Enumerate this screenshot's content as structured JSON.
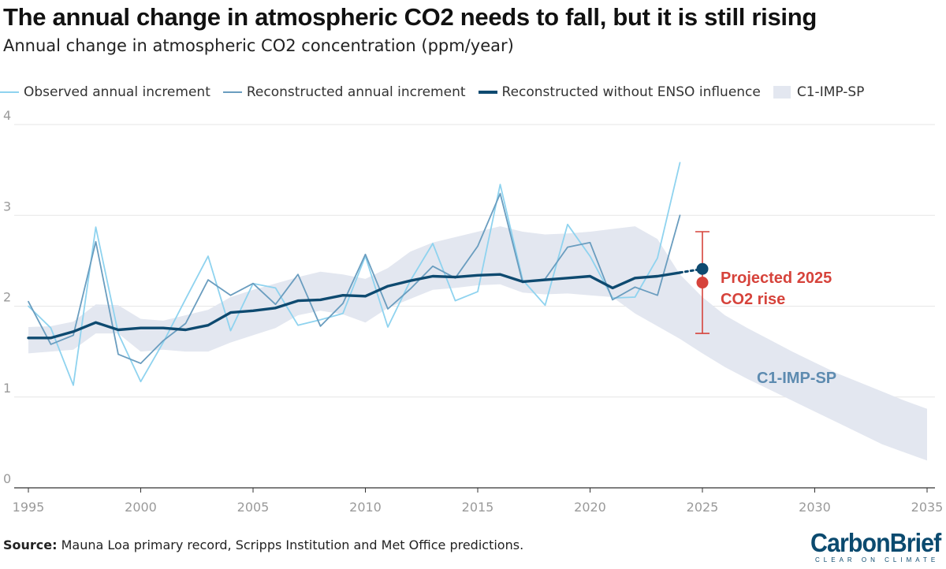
{
  "title": "The annual change in atmospheric CO2 needs to fall, but it is still rising",
  "subtitle": "Annual change in atmospheric CO2 concentration (ppm/year)",
  "legend": [
    {
      "label": "Observed annual increment",
      "kind": "line",
      "color": "#8fd3ef"
    },
    {
      "label": "Reconstructed annual increment",
      "kind": "line",
      "color": "#6a9dbf"
    },
    {
      "label": "Reconstructed without ENSO influence",
      "kind": "line",
      "color": "#0e4a70"
    },
    {
      "label": "C1-IMP-SP",
      "kind": "band",
      "color": "#e3e7f0"
    }
  ],
  "source": {
    "label": "Source:",
    "text": " Mauna Loa primary record, Scripps Institution and Met Office predictions."
  },
  "logo": {
    "main": "CarbonBrief",
    "tagline": "CLEAR ON CLIMATE"
  },
  "annotations": {
    "projection_label_line1": "Projected 2025",
    "projection_label_line2": "CO2 rise",
    "band_label": "C1-IMP-SP"
  },
  "colors": {
    "observed": "#8fd3ef",
    "reconstructed": "#6a9dbf",
    "no_enso": "#0e4a70",
    "band": "#e3e7f0",
    "projection": "#d6433b",
    "band_label": "#5d8bb0",
    "grid": "#e6e6e6",
    "tick_text": "#9a9a9a"
  },
  "chart_data": {
    "type": "line",
    "title": "The annual change in atmospheric CO2 needs to fall, but it is still rising",
    "subtitle": "Annual change in atmospheric CO2 concentration (ppm/year)",
    "xlabel": "",
    "ylabel": "",
    "xlim": [
      1995,
      2035
    ],
    "ylim": [
      0,
      4
    ],
    "x_ticks": [
      1995,
      2000,
      2005,
      2010,
      2015,
      2020,
      2025,
      2030,
      2035
    ],
    "y_ticks": [
      0,
      1,
      2,
      3,
      4
    ],
    "grid": "horizontal",
    "legend_position": "top",
    "series": [
      {
        "name": "Observed annual increment",
        "x": [
          1995,
          1996,
          1997,
          1998,
          1999,
          2000,
          2001,
          2002,
          2003,
          2004,
          2005,
          2006,
          2007,
          2008,
          2009,
          2010,
          2011,
          2012,
          2013,
          2014,
          2015,
          2016,
          2017,
          2018,
          2019,
          2020,
          2021,
          2022,
          2023,
          2024
        ],
        "values": [
          2.0,
          1.76,
          1.13,
          2.87,
          1.7,
          1.17,
          1.6,
          2.08,
          2.55,
          1.73,
          2.25,
          2.2,
          1.79,
          1.85,
          1.92,
          2.55,
          1.77,
          2.28,
          2.69,
          2.06,
          2.16,
          3.34,
          2.29,
          2.01,
          2.9,
          2.55,
          2.09,
          2.1,
          2.53,
          3.58
        ]
      },
      {
        "name": "Reconstructed annual increment",
        "x": [
          1995,
          1996,
          1997,
          1998,
          1999,
          2000,
          2001,
          2002,
          2003,
          2004,
          2005,
          2006,
          2007,
          2008,
          2009,
          2010,
          2011,
          2012,
          2013,
          2014,
          2015,
          2016,
          2017,
          2018,
          2019,
          2020,
          2021,
          2022,
          2023,
          2024
        ],
        "values": [
          2.05,
          1.58,
          1.68,
          2.71,
          1.47,
          1.37,
          1.62,
          1.81,
          2.29,
          2.12,
          2.25,
          2.02,
          2.35,
          1.78,
          2.03,
          2.57,
          1.97,
          2.19,
          2.44,
          2.31,
          2.66,
          3.24,
          2.26,
          2.3,
          2.65,
          2.7,
          2.07,
          2.21,
          2.12,
          3.0
        ]
      },
      {
        "name": "Reconstructed without ENSO influence",
        "x": [
          1995,
          1996,
          1997,
          1998,
          1999,
          2000,
          2001,
          2002,
          2003,
          2004,
          2005,
          2006,
          2007,
          2008,
          2009,
          2010,
          2011,
          2012,
          2013,
          2014,
          2015,
          2016,
          2017,
          2018,
          2019,
          2020,
          2021,
          2022,
          2023,
          2024
        ],
        "values": [
          1.65,
          1.65,
          1.72,
          1.82,
          1.74,
          1.76,
          1.76,
          1.74,
          1.79,
          1.93,
          1.95,
          1.98,
          2.06,
          2.07,
          2.12,
          2.11,
          2.22,
          2.28,
          2.33,
          2.32,
          2.34,
          2.35,
          2.27,
          2.29,
          2.31,
          2.33,
          2.2,
          2.31,
          2.33,
          2.37
        ]
      }
    ],
    "band": {
      "name": "C1-IMP-SP",
      "x": [
        1995,
        1996,
        1997,
        1998,
        1999,
        2000,
        2001,
        2002,
        2003,
        2004,
        2005,
        2006,
        2007,
        2008,
        2009,
        2010,
        2011,
        2012,
        2013,
        2014,
        2015,
        2016,
        2017,
        2018,
        2019,
        2020,
        2021,
        2022,
        2023,
        2024,
        2025,
        2026,
        2027,
        2028,
        2029,
        2030,
        2031,
        2032,
        2033,
        2034,
        2035
      ],
      "upper": [
        1.77,
        1.78,
        1.83,
        2.02,
        2.01,
        1.86,
        1.84,
        1.9,
        1.96,
        2.1,
        2.18,
        2.25,
        2.32,
        2.38,
        2.35,
        2.3,
        2.42,
        2.6,
        2.7,
        2.76,
        2.82,
        2.88,
        2.82,
        2.79,
        2.8,
        2.82,
        2.85,
        2.88,
        2.74,
        2.35,
        2.1,
        1.9,
        1.76,
        1.63,
        1.5,
        1.38,
        1.26,
        1.16,
        1.06,
        0.96,
        0.87
      ],
      "lower": [
        1.48,
        1.5,
        1.52,
        1.7,
        1.7,
        1.5,
        1.52,
        1.5,
        1.5,
        1.6,
        1.68,
        1.76,
        1.9,
        1.95,
        1.91,
        1.82,
        1.98,
        2.08,
        2.18,
        2.2,
        2.23,
        2.24,
        2.15,
        2.13,
        2.14,
        2.12,
        2.1,
        1.92,
        1.78,
        1.64,
        1.48,
        1.33,
        1.2,
        1.08,
        0.96,
        0.84,
        0.72,
        0.6,
        0.48,
        0.39,
        0.3
      ]
    },
    "projection_2025": {
      "name": "Projected 2025 CO2 rise",
      "year": 2025,
      "central": 2.26,
      "lower": 1.7,
      "upper": 2.82,
      "no_enso_value": 2.41
    }
  }
}
